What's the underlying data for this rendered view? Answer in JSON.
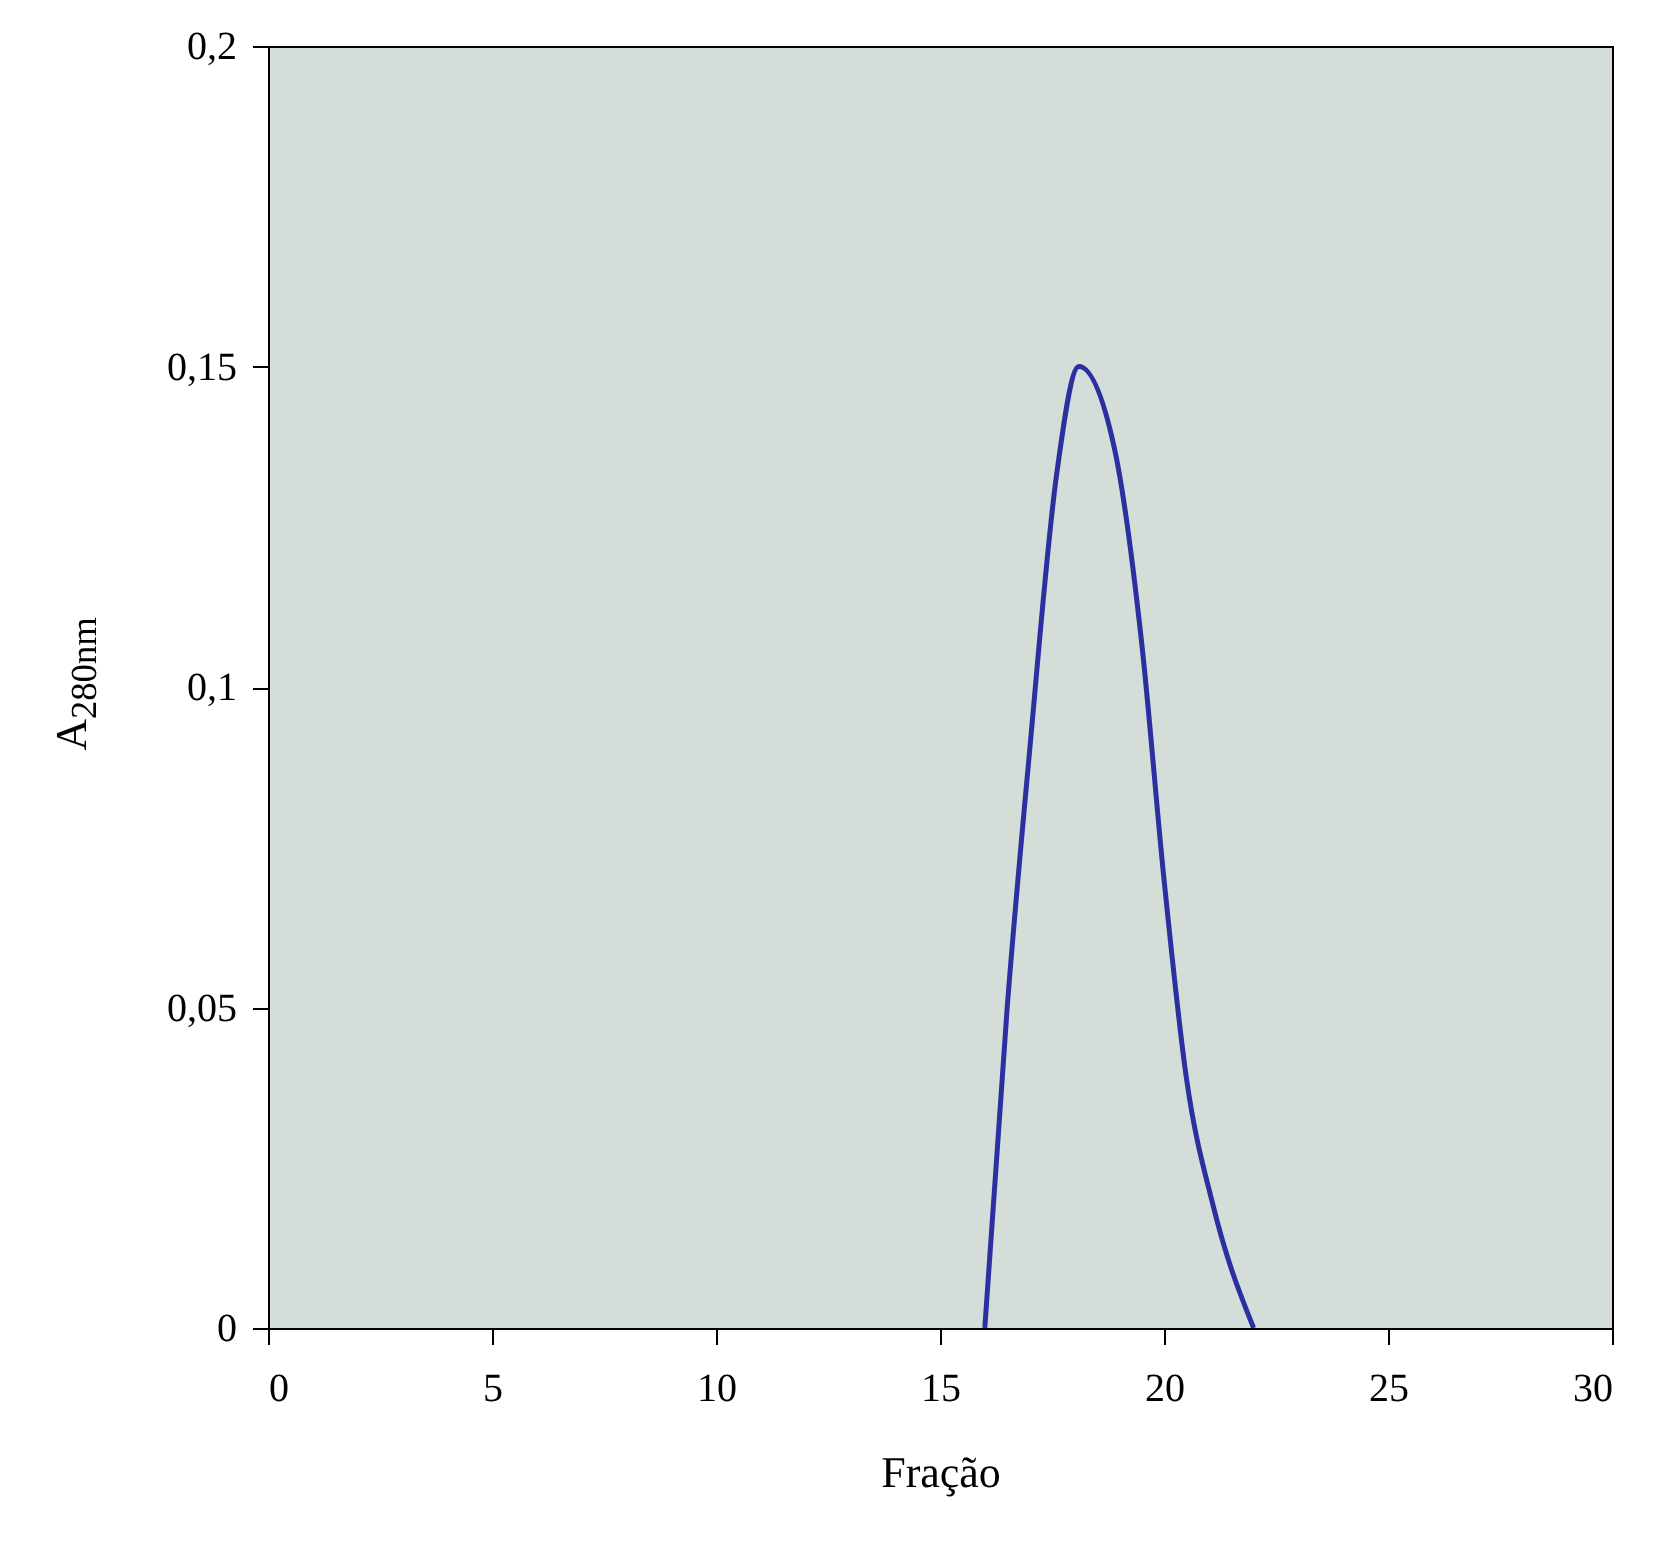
{
  "chart_data": {
    "type": "line",
    "xlabel": "Fração",
    "ylabel": "A$_{280nm}$",
    "x": [
      16,
      16.5,
      17,
      17.6,
      18.1,
      18.9,
      19.5,
      20,
      20.5,
      21.1,
      22
    ],
    "series": [
      {
        "color": "#2b2fa0",
        "values": [
          0,
          0.05,
          0.09,
          0.133,
          0.15,
          0.137,
          0.107,
          0.07,
          0.039,
          0.019,
          0
        ]
      }
    ],
    "xlim": [
      0,
      30
    ],
    "xticks": [
      0,
      5,
      10,
      15,
      20,
      25,
      30
    ],
    "ylim": [
      0,
      0.2
    ],
    "yticks": [
      0,
      {
        "value": 0.05,
        "label": "0,05"
      },
      {
        "value": 0.1,
        "label": "0,1"
      },
      {
        "value": 0.15,
        "label": "0,15"
      },
      {
        "value": 0.2,
        "label": "0,2"
      }
    ]
  }
}
